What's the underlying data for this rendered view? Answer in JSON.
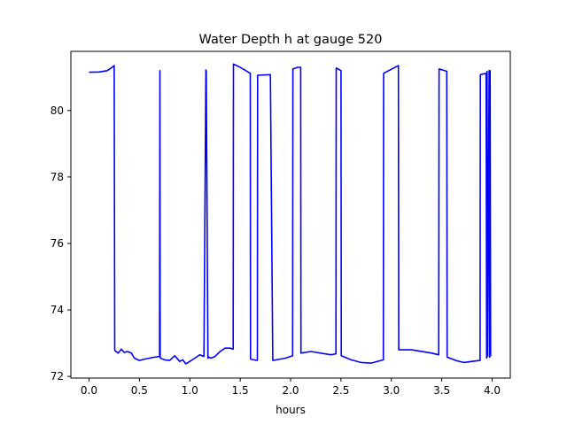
{
  "chart_data": {
    "type": "line",
    "title": "Water Depth h at gauge 520",
    "xlabel": "hours",
    "ylabel": "",
    "xlim": [
      -0.18,
      4.18
    ],
    "ylim": [
      71.95,
      81.78
    ],
    "xticks": [
      0.0,
      0.5,
      1.0,
      1.5,
      2.0,
      2.5,
      3.0,
      3.5,
      4.0
    ],
    "xtick_labels": [
      "0.0",
      "0.5",
      "1.0",
      "1.5",
      "2.0",
      "2.5",
      "3.0",
      "3.5",
      "4.0"
    ],
    "yticks": [
      72,
      74,
      76,
      78,
      80
    ],
    "ytick_labels": [
      "72",
      "74",
      "76",
      "78",
      "80"
    ],
    "grid": false,
    "legend": "none",
    "series": [
      {
        "color": "#0000ff",
        "x": [
          0.0,
          0.1,
          0.18,
          0.22,
          0.25,
          0.255,
          0.29,
          0.32,
          0.35,
          0.38,
          0.42,
          0.45,
          0.5,
          0.55,
          0.6,
          0.65,
          0.7,
          0.703,
          0.706,
          0.709,
          0.75,
          0.8,
          0.85,
          0.9,
          0.93,
          0.96,
          1.0,
          1.05,
          1.1,
          1.14,
          1.16,
          1.163,
          1.18,
          1.19,
          1.21,
          1.25,
          1.3,
          1.35,
          1.4,
          1.43,
          1.433,
          1.5,
          1.6,
          1.603,
          1.67,
          1.673,
          1.8,
          1.823,
          1.95,
          2.02,
          2.023,
          2.07,
          2.1,
          2.103,
          2.2,
          2.4,
          2.45,
          2.453,
          2.5,
          2.503,
          2.6,
          2.7,
          2.8,
          2.92,
          2.923,
          3.07,
          3.073,
          3.2,
          3.4,
          3.47,
          3.473,
          3.55,
          3.553,
          3.65,
          3.72,
          3.8,
          3.88,
          3.883,
          3.94,
          3.945,
          3.95,
          3.955,
          3.97,
          3.975,
          3.98,
          3.985,
          3.99
        ],
        "y": [
          81.15,
          81.16,
          81.2,
          81.28,
          81.35,
          72.78,
          72.7,
          72.82,
          72.72,
          72.75,
          72.7,
          72.55,
          72.48,
          72.52,
          72.55,
          72.58,
          72.6,
          81.2,
          72.58,
          72.55,
          72.5,
          72.48,
          72.62,
          72.45,
          72.5,
          72.38,
          72.45,
          72.55,
          72.65,
          72.6,
          81.22,
          81.18,
          72.55,
          72.58,
          72.55,
          72.6,
          72.75,
          72.85,
          72.85,
          72.82,
          81.4,
          81.3,
          81.12,
          72.52,
          72.48,
          81.06,
          81.08,
          72.48,
          72.55,
          72.62,
          81.25,
          81.3,
          81.3,
          72.7,
          72.75,
          72.65,
          72.68,
          81.28,
          81.2,
          72.62,
          72.5,
          72.42,
          72.4,
          72.5,
          81.12,
          81.35,
          72.8,
          72.8,
          72.7,
          72.65,
          81.25,
          81.18,
          72.58,
          72.47,
          72.42,
          72.45,
          72.48,
          81.08,
          81.12,
          72.55,
          81.18,
          72.6,
          81.2,
          72.58,
          81.2,
          72.62,
          72.62
        ]
      }
    ]
  }
}
